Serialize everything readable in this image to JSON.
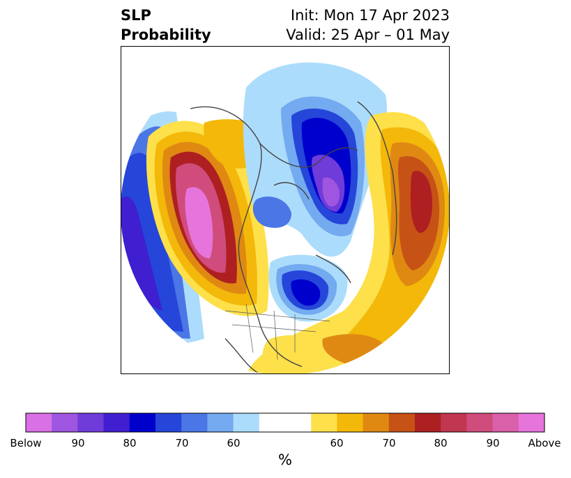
{
  "title": {
    "left_line1": "SLP",
    "left_line2": "Probability",
    "right_line1": "Init: Mon 17 Apr 2023",
    "right_line2": "Valid: 25 Apr – 01 May"
  },
  "colorbar": {
    "unit": "%",
    "colors": [
      "#da70e6",
      "#9e56e0",
      "#6f3bd9",
      "#3f1fd0",
      "#0000cd",
      "#2546d9",
      "#4a76e6",
      "#74aaf0",
      "#acdcfb",
      "#ffffff",
      "#ffffff",
      "#fde04a",
      "#f3b80a",
      "#df8913",
      "#c65216",
      "#ae1f21",
      "#c13650",
      "#cf4c7c",
      "#db60aa",
      "#e674db"
    ],
    "tick_labels": [
      "Below",
      "90",
      "80",
      "70",
      "60",
      "60",
      "70",
      "80",
      "90",
      "Above"
    ]
  }
}
